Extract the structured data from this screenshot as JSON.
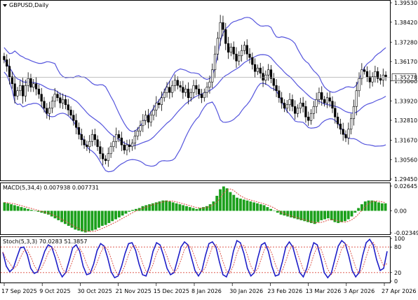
{
  "chart_data": [
    {
      "type": "candlestick",
      "title": "GBPUSD,Daily",
      "current_price": "1.35278",
      "yaxis_ticks": [
        "1.39530",
        "1.38420",
        "1.37280",
        "1.36170",
        "1.35060",
        "1.33920",
        "1.32810",
        "1.31670",
        "1.30560",
        "1.29450"
      ],
      "ylim": [
        1.2945,
        1.3953
      ],
      "bollinger_bands": true,
      "xaxis_ticks": [
        "17 Sep 2025",
        "9 Oct 2025",
        "30 Oct 2025",
        "21 Nov 2025",
        "15 Dec 2025",
        "8 Jan 2026",
        "30 Jan 2026",
        "23 Feb 2026",
        "13 Mar 2026",
        "3 Apr 2026",
        "27 Apr 2026"
      ],
      "close": [
        1.3627,
        1.359,
        1.353,
        1.349,
        1.342,
        1.345,
        1.348,
        1.342,
        1.348,
        1.352,
        1.347,
        1.349,
        1.346,
        1.343,
        1.339,
        1.335,
        1.332,
        1.335,
        1.339,
        1.343,
        1.341,
        1.338,
        1.34,
        1.337,
        1.334,
        1.331,
        1.328,
        1.324,
        1.32,
        1.317,
        1.314,
        1.313,
        1.316,
        1.32,
        1.317,
        1.313,
        1.309,
        1.306,
        1.305,
        1.309,
        1.313,
        1.316,
        1.32,
        1.318,
        1.314,
        1.311,
        1.314,
        1.313,
        1.315,
        1.319,
        1.322,
        1.325,
        1.328,
        1.331,
        1.327,
        1.331,
        1.334,
        1.338,
        1.337,
        1.341,
        1.344,
        1.347,
        1.344,
        1.348,
        1.351,
        1.348,
        1.347,
        1.344,
        1.346,
        1.341,
        1.344,
        1.348,
        1.346,
        1.343,
        1.341,
        1.344,
        1.347,
        1.35,
        1.357,
        1.366,
        1.375,
        1.384,
        1.38,
        1.372,
        1.367,
        1.37,
        1.366,
        1.362,
        1.365,
        1.368,
        1.371,
        1.366,
        1.364,
        1.36,
        1.356,
        1.358,
        1.355,
        1.351,
        1.354,
        1.357,
        1.352,
        1.348,
        1.345,
        1.341,
        1.338,
        1.335,
        1.337,
        1.34,
        1.336,
        1.332,
        1.335,
        1.338,
        1.336,
        1.33,
        1.328,
        1.332,
        1.336,
        1.34,
        1.344,
        1.34,
        1.338,
        1.341,
        1.339,
        1.335,
        1.33,
        1.326,
        1.323,
        1.32,
        1.318,
        1.323,
        1.329,
        1.336,
        1.345,
        1.352,
        1.357,
        1.356,
        1.353,
        1.35,
        1.353,
        1.356,
        1.352,
        1.351,
        1.354,
        1.3528
      ]
    },
    {
      "type": "histogram",
      "title": "MACD(5,34,4) 0.007938 0.007731",
      "yaxis_ticks": [
        "0.02645",
        "0.00",
        "-0.02349"
      ],
      "ylim": [
        -0.02349,
        0.02645
      ],
      "values": [
        0.009,
        0.008,
        0.007,
        0.006,
        0.005,
        0.004,
        0.003,
        0.002,
        0.001,
        0.0,
        -0.001,
        -0.002,
        -0.003,
        -0.004,
        -0.006,
        -0.008,
        -0.01,
        -0.012,
        -0.014,
        -0.016,
        -0.018,
        -0.02,
        -0.021,
        -0.022,
        -0.023,
        -0.022,
        -0.021,
        -0.02,
        -0.018,
        -0.016,
        -0.015,
        -0.013,
        -0.011,
        -0.009,
        -0.007,
        -0.005,
        -0.003,
        -0.001,
        0.001,
        0.002,
        0.003,
        0.005,
        0.006,
        0.007,
        0.008,
        0.009,
        0.01,
        0.011,
        0.011,
        0.01,
        0.009,
        0.008,
        0.007,
        0.006,
        0.005,
        0.004,
        0.003,
        0.002,
        0.003,
        0.004,
        0.005,
        0.007,
        0.01,
        0.016,
        0.023,
        0.026,
        0.024,
        0.02,
        0.017,
        0.014,
        0.013,
        0.012,
        0.011,
        0.01,
        0.009,
        0.008,
        0.007,
        0.006,
        0.004,
        0.002,
        0.0,
        -0.002,
        -0.004,
        -0.005,
        -0.006,
        -0.007,
        -0.008,
        -0.009,
        -0.01,
        -0.011,
        -0.012,
        -0.013,
        -0.014,
        -0.012,
        -0.01,
        -0.009,
        -0.008,
        -0.01,
        -0.012,
        -0.013,
        -0.012,
        -0.011,
        -0.009,
        -0.006,
        -0.002,
        0.003,
        0.007,
        0.01,
        0.011,
        0.011,
        0.01,
        0.009,
        0.008,
        0.008
      ],
      "signal": "dotted red"
    },
    {
      "type": "line",
      "title": "Stoch(5,3,3) 70.0283 51.3857",
      "yaxis_ticks": [
        "100",
        "80",
        "20",
        "0"
      ],
      "ylim": [
        0,
        100
      ],
      "levels": [
        80,
        20
      ],
      "series": [
        {
          "values": [
            68,
            35,
            22,
            30,
            55,
            78,
            80,
            62,
            30,
            18,
            22,
            45,
            70,
            85,
            80,
            55,
            25,
            10,
            20,
            48,
            78,
            85,
            70,
            35,
            15,
            18,
            40,
            72,
            88,
            82,
            55,
            22,
            8,
            12,
            35,
            65,
            88,
            90,
            72,
            40,
            15,
            12,
            35,
            70,
            90,
            85,
            60,
            30,
            15,
            20,
            50,
            80,
            92,
            85,
            55,
            25,
            12,
            25,
            60,
            88,
            92,
            80,
            45,
            15,
            10,
            30,
            70,
            95,
            90,
            65,
            30,
            12,
            20,
            55,
            85,
            90,
            70,
            35,
            12,
            15,
            45,
            80,
            92,
            80,
            50,
            20,
            10,
            30,
            65,
            90,
            85,
            55,
            20,
            8,
            18,
            50,
            82,
            95,
            88,
            60,
            25,
            10,
            20,
            60,
            90,
            98,
            85,
            50,
            25,
            30,
            70
          ]
        }
      ]
    }
  ]
}
